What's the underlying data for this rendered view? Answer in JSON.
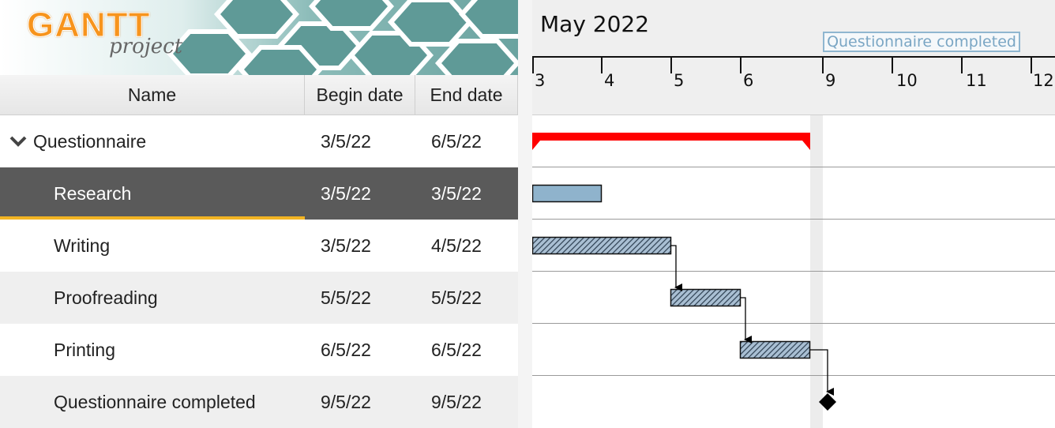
{
  "app": {
    "logo_main": "GANTT",
    "logo_sub": "project"
  },
  "columns": {
    "name": "Name",
    "begin": "Begin date",
    "end": "End date"
  },
  "tasks": [
    {
      "name": "Questionnaire",
      "begin": "3/5/22",
      "end": "6/5/22",
      "expanded": true
    },
    {
      "name": "Research",
      "begin": "3/5/22",
      "end": "3/5/22",
      "selected": true
    },
    {
      "name": "Writing",
      "begin": "3/5/22",
      "end": "4/5/22"
    },
    {
      "name": "Proofreading",
      "begin": "5/5/22",
      "end": "5/5/22"
    },
    {
      "name": "Printing",
      "begin": "6/5/22",
      "end": "6/5/22"
    },
    {
      "name": "Questionnaire completed",
      "begin": "9/5/22",
      "end": "9/5/22"
    }
  ],
  "timeline": {
    "month": "May 2022",
    "days": [
      "3",
      "4",
      "5",
      "6",
      "9",
      "10",
      "11",
      "12"
    ],
    "milestone_label": "Questionnaire completed"
  },
  "colors": {
    "summary_bar": "#ff0000",
    "research_bar": "#8fb3cc",
    "hatched_bar": "#8aa4bd",
    "selected_row": "#5a5a5a",
    "selection_underline": "#f2b423",
    "logo_orange": "#f7941d"
  }
}
